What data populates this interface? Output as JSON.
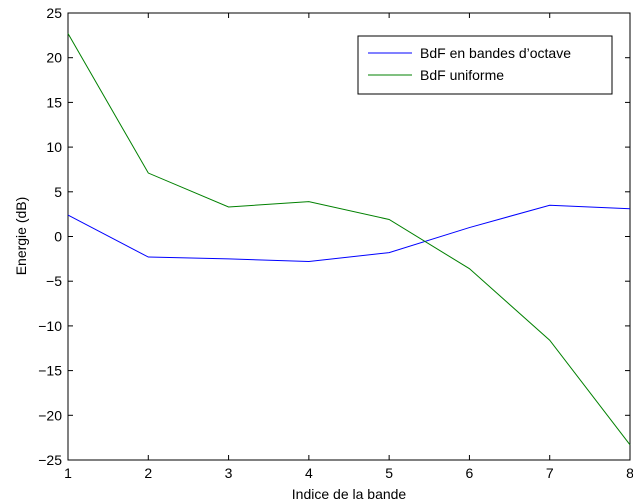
{
  "chart_data": {
    "type": "line",
    "title": "",
    "xlabel": "Indice de la bande",
    "ylabel": "Energie (dB)",
    "x": [
      1,
      2,
      3,
      4,
      5,
      6,
      7,
      8
    ],
    "xlim": [
      1,
      8
    ],
    "ylim": [
      -25,
      25
    ],
    "xticks": [
      1,
      2,
      3,
      4,
      5,
      6,
      7,
      8
    ],
    "yticks": [
      -25,
      -20,
      -15,
      -10,
      -5,
      0,
      5,
      10,
      15,
      20,
      25
    ],
    "grid": false,
    "legend_position": "top-right",
    "series": [
      {
        "name": "BdF en bandes d’octave",
        "color": "#0000ff",
        "values": [
          2.4,
          -2.3,
          -2.5,
          -2.8,
          -1.8,
          1.0,
          3.5,
          3.1
        ]
      },
      {
        "name": "BdF uniforme",
        "color": "#008000",
        "values": [
          22.7,
          7.1,
          3.3,
          3.9,
          1.9,
          -3.6,
          -11.6,
          -23.3
        ]
      }
    ]
  }
}
